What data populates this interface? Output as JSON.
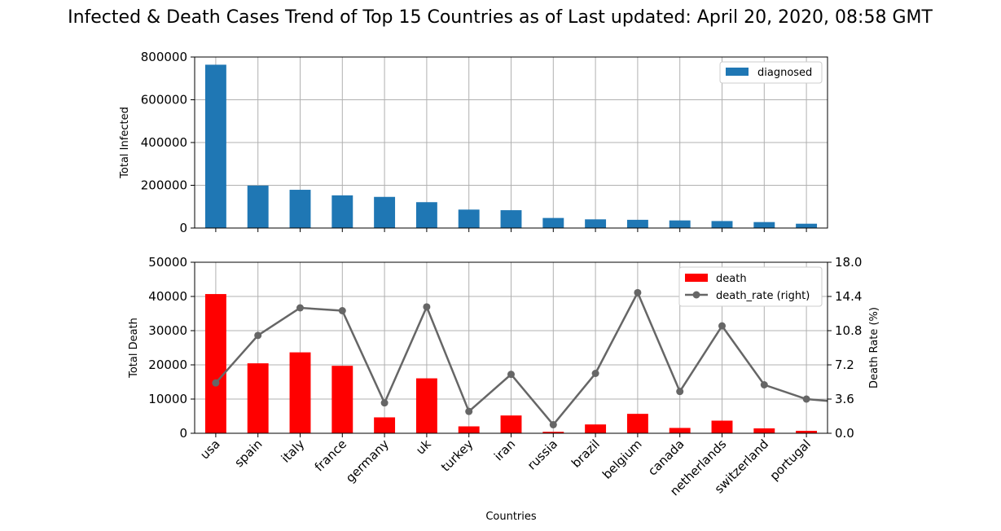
{
  "figure": {
    "title": "Infected & Death Cases Trend of Top 15 Countries as of Last updated: April 20, 2020, 08:58 GMT"
  },
  "chart_data": [
    {
      "type": "bar",
      "categories": [
        "usa",
        "spain",
        "italy",
        "france",
        "germany",
        "uk",
        "turkey",
        "iran",
        "russia",
        "brazil",
        "belgium",
        "canada",
        "netherlands",
        "switzerland",
        "portugal"
      ],
      "series": [
        {
          "name": "diagnosed",
          "color": "#1f77b4",
          "values": [
            764000,
            198700,
            178900,
            152900,
            145700,
            121000,
            86300,
            83500,
            47100,
            40700,
            38500,
            35600,
            32700,
            27900,
            20200
          ]
        }
      ],
      "ylabel": "Total Infected",
      "ylim": [
        0,
        800000
      ],
      "yticks": [
        0,
        200000,
        400000,
        600000,
        800000
      ],
      "grid": true,
      "legend": "top-right"
    },
    {
      "type": "bar",
      "categories": [
        "usa",
        "spain",
        "italy",
        "france",
        "germany",
        "uk",
        "turkey",
        "iran",
        "russia",
        "brazil",
        "belgium",
        "canada",
        "netherlands",
        "switzerland",
        "portugal"
      ],
      "series": [
        {
          "name": "death",
          "color": "#ff0000",
          "values": [
            40700,
            20450,
            23660,
            19720,
            4650,
            16060,
            2020,
            5200,
            430,
            2580,
            5680,
            1560,
            3690,
            1430,
            720
          ]
        }
      ],
      "secondary": {
        "type": "line",
        "name": "death_rate (right)",
        "color": "#666666",
        "values": [
          5.3,
          10.3,
          13.2,
          12.9,
          3.2,
          13.3,
          2.3,
          6.2,
          0.9,
          6.3,
          14.8,
          4.4,
          11.3,
          5.1,
          3.6
        ],
        "extra_tail_value": 3.4,
        "ylabel": "Death Rate (%)",
        "ylim": [
          0,
          18
        ],
        "yticks": [
          "0.0",
          "3.6",
          "7.2",
          "10.8",
          "14.4",
          "18.0"
        ]
      },
      "ylabel": "Total Death",
      "ylim": [
        0,
        50000
      ],
      "yticks": [
        0,
        10000,
        20000,
        30000,
        40000,
        50000
      ],
      "xlabel": "Countries",
      "grid": true,
      "legend": "top-right"
    }
  ]
}
